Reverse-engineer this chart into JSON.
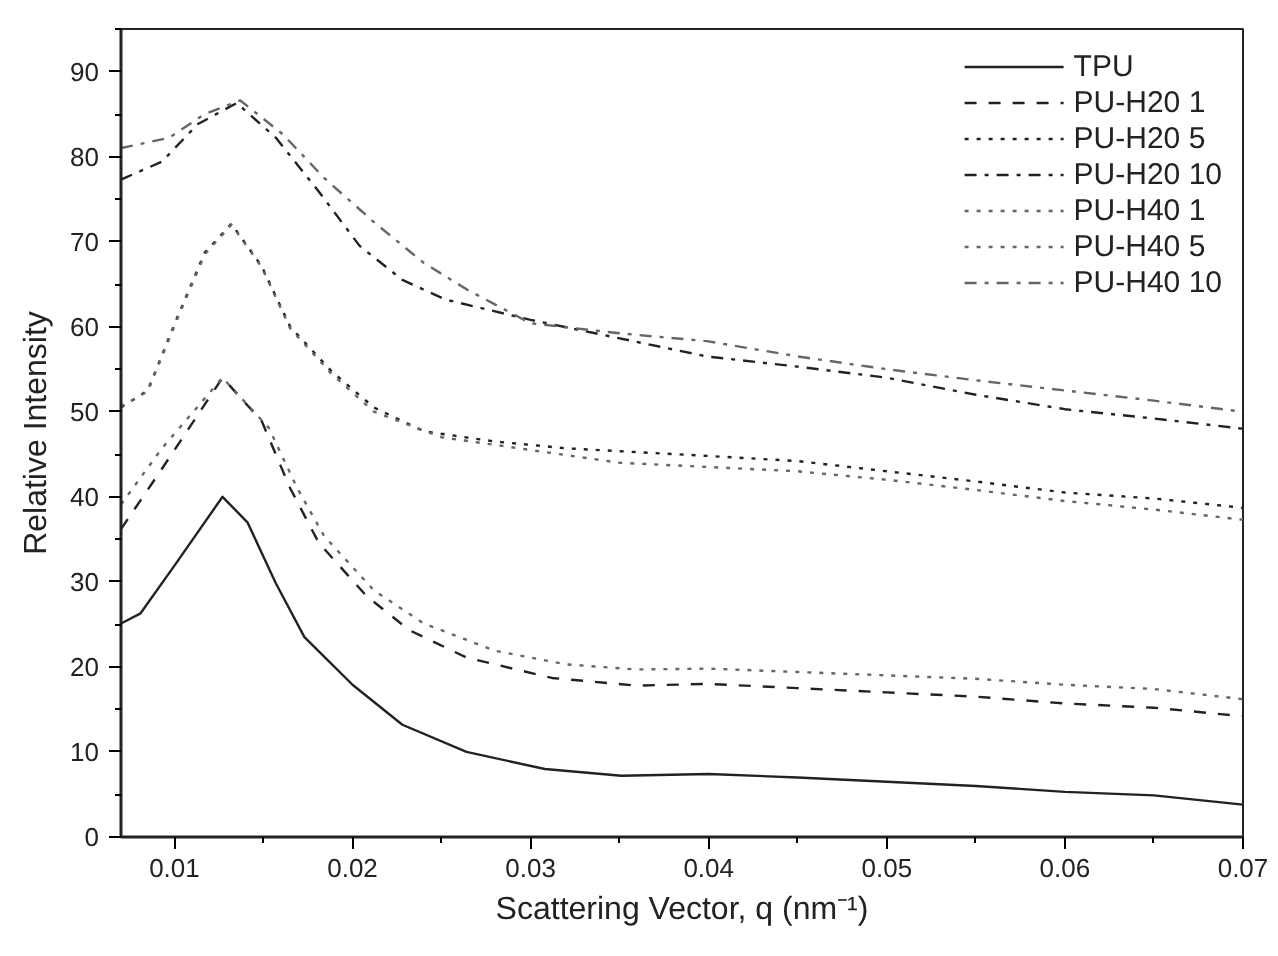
{
  "chart_data": {
    "type": "line",
    "xlabel": "Scattering Vector, q (nm⁻¹)",
    "ylabel": "Relative Intensity",
    "xlim": [
      0.007,
      0.07
    ],
    "ylim": [
      0,
      95
    ],
    "xticks": [
      0.01,
      0.02,
      0.03,
      0.04,
      0.05,
      0.06,
      0.07
    ],
    "yticks": [
      0,
      10,
      20,
      30,
      40,
      50,
      60,
      70,
      80,
      90
    ],
    "grid": false,
    "legend": "top right",
    "series": [
      {
        "name": "TPU",
        "color": "#222222",
        "line_style": "solid",
        "x": [
          0.007,
          0.0081,
          0.0101,
          0.0127,
          0.0141,
          0.0157,
          0.0173,
          0.02,
          0.0228,
          0.0264,
          0.0308,
          0.0351,
          0.04,
          0.045,
          0.05,
          0.055,
          0.06,
          0.065,
          0.07
        ],
        "values": [
          25.1,
          26.3,
          32.2,
          40,
          37,
          29.8,
          23.5,
          17.9,
          13.2,
          10,
          8,
          7.2,
          7.4,
          7,
          6.5,
          6,
          5.3,
          4.9,
          3.8
        ]
      },
      {
        "name": "PU-H20 1",
        "color": "#222222",
        "line_style": "dashed",
        "x": [
          0.007,
          0.0093,
          0.0127,
          0.0149,
          0.0165,
          0.0181,
          0.0208,
          0.0232,
          0.0264,
          0.0312,
          0.0359,
          0.04,
          0.045,
          0.05,
          0.055,
          0.06,
          0.065,
          0.07
        ],
        "values": [
          36.2,
          43.3,
          54,
          48.9,
          41,
          34.6,
          28.3,
          24.3,
          21.1,
          18.7,
          17.8,
          18,
          17.5,
          17,
          16.5,
          15.7,
          15.2,
          14.2
        ]
      },
      {
        "name": "PU-H20 5",
        "color": "#222222",
        "line_style": "dotted",
        "x": [
          0.007,
          0.0085,
          0.0101,
          0.0117,
          0.0132,
          0.0149,
          0.0165,
          0.0188,
          0.0212,
          0.024,
          0.028,
          0.032,
          0.04,
          0.045,
          0.05,
          0.055,
          0.06,
          0.065,
          0.07
        ],
        "values": [
          50.5,
          52.5,
          60.8,
          68.7,
          72.1,
          67.1,
          60,
          54.8,
          50.5,
          47.7,
          46.5,
          45.7,
          44.8,
          44.2,
          43,
          41.8,
          40.5,
          39.8,
          38.7
        ]
      },
      {
        "name": "PU-H20 10",
        "color": "#222222",
        "line_style": "dashdot",
        "x": [
          0.007,
          0.0093,
          0.0113,
          0.0135,
          0.0157,
          0.0181,
          0.0204,
          0.0228,
          0.0252,
          0.03,
          0.0399,
          0.045,
          0.05,
          0.055,
          0.06,
          0.065,
          0.07
        ],
        "values": [
          77.3,
          79.4,
          83.8,
          86.3,
          82.2,
          75.9,
          69.5,
          65.5,
          63.2,
          60.8,
          56.5,
          55.3,
          54,
          52,
          50.3,
          49.2,
          48
        ]
      },
      {
        "name": "PU-H40 1",
        "color": "#666666",
        "line_style": "dotted",
        "x": [
          0.007,
          0.0093,
          0.0127,
          0.0153,
          0.0169,
          0.0184,
          0.0212,
          0.024,
          0.028,
          0.032,
          0.0359,
          0.04,
          0.045,
          0.05,
          0.055,
          0.06,
          0.065,
          0.07
        ],
        "values": [
          39.1,
          45.7,
          54,
          48.1,
          41,
          35.4,
          29,
          25.1,
          21.9,
          20.3,
          19.7,
          19.8,
          19.4,
          19,
          18.6,
          17.9,
          17.4,
          16.2
        ]
      },
      {
        "name": "PU-H40 5",
        "color": "#666666",
        "line_style": "dotted",
        "x": [
          0.007,
          0.0085,
          0.0101,
          0.0117,
          0.0132,
          0.0149,
          0.0165,
          0.0188,
          0.0212,
          0.025,
          0.03,
          0.035,
          0.04,
          0.045,
          0.05,
          0.055,
          0.06,
          0.065,
          0.07
        ],
        "values": [
          50.6,
          52.4,
          60.6,
          68.5,
          72,
          67,
          59.8,
          54.5,
          50,
          47,
          45.5,
          44,
          43.5,
          43,
          42,
          40.8,
          39.5,
          38.5,
          37.3
        ]
      },
      {
        "name": "PU-H40 10",
        "color": "#666666",
        "line_style": "dashdot",
        "x": [
          0.007,
          0.0097,
          0.0117,
          0.0137,
          0.0161,
          0.0184,
          0.0212,
          0.024,
          0.0264,
          0.03,
          0.0351,
          0.0399,
          0.045,
          0.05,
          0.055,
          0.06,
          0.065,
          0.07
        ],
        "values": [
          81,
          82.2,
          85,
          86.6,
          82.6,
          77.5,
          72.3,
          67.5,
          64.4,
          60.4,
          59.2,
          58.3,
          56.5,
          55,
          53.7,
          52.5,
          51.3,
          50
        ]
      }
    ]
  }
}
